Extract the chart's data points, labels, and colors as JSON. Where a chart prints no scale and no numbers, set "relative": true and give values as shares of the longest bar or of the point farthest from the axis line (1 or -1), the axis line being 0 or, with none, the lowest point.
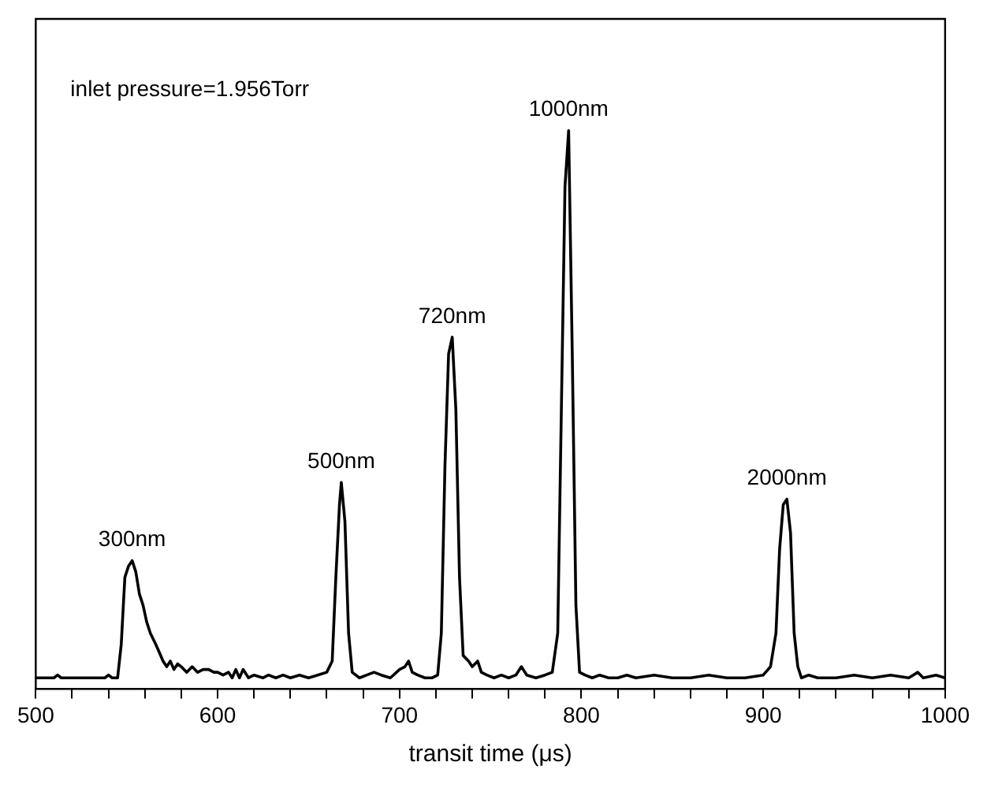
{
  "chart_data": {
    "type": "line",
    "relative": true,
    "xlabel": "transit time (μs)",
    "xlim": [
      500,
      1000
    ],
    "xticks": [
      500,
      {
        "value": 520,
        "label": null
      },
      {
        "value": 540,
        "label": null
      },
      {
        "value": 560,
        "label": null
      },
      {
        "value": 580,
        "label": null
      },
      600,
      {
        "value": 620,
        "label": null
      },
      {
        "value": 640,
        "label": null
      },
      {
        "value": 660,
        "label": null
      },
      {
        "value": 680,
        "label": null
      },
      700,
      {
        "value": 720,
        "label": null
      },
      {
        "value": 740,
        "label": null
      },
      {
        "value": 760,
        "label": null
      },
      {
        "value": 780,
        "label": null
      },
      800,
      {
        "value": 820,
        "label": null
      },
      {
        "value": 840,
        "label": null
      },
      {
        "value": 860,
        "label": null
      },
      {
        "value": 880,
        "label": null
      },
      900,
      {
        "value": 920,
        "label": null
      },
      {
        "value": 940,
        "label": null
      },
      {
        "value": 960,
        "label": null
      },
      {
        "value": 980,
        "label": null
      },
      1000
    ],
    "tick_labels": "x",
    "grid": false,
    "legend": false,
    "marker": "none",
    "line_style": "solid",
    "annotations": [
      "inlet pressure=1.956Torr",
      {
        "text": "300nm",
        "x": 553,
        "y": 0.23
      },
      {
        "text": "500nm",
        "x": 668,
        "y": 0.37
      },
      {
        "text": "720nm",
        "x": 729,
        "y": 0.63
      },
      {
        "text": "1000nm",
        "x": 793,
        "y": 1
      },
      {
        "text": "2000nm",
        "x": 913,
        "y": 0.34
      }
    ],
    "series": [
      {
        "color": "#000000",
        "x": [
          500,
          510,
          512,
          514,
          530,
          538,
          540,
          542,
          545,
          547,
          549,
          551,
          553,
          555,
          557,
          559,
          561,
          563,
          566,
          568,
          570,
          572,
          574,
          576,
          578,
          580,
          583,
          586,
          589,
          592,
          595,
          598,
          600,
          603,
          606,
          608,
          610,
          612,
          614,
          617,
          620,
          625,
          628,
          632,
          636,
          640,
          645,
          650,
          655,
          660,
          663,
          665,
          667,
          668,
          670,
          672,
          674,
          678,
          682,
          686,
          690,
          695,
          700,
          703,
          705,
          707,
          710,
          714,
          718,
          721,
          723,
          725,
          727,
          729,
          731,
          733,
          735,
          738,
          740,
          743,
          745,
          748,
          752,
          756,
          760,
          764,
          767,
          770,
          775,
          780,
          784,
          787,
          789,
          791,
          793,
          795,
          797,
          799,
          802,
          806,
          810,
          815,
          820,
          825,
          830,
          840,
          850,
          860,
          870,
          880,
          890,
          900,
          904,
          907,
          909,
          911,
          913,
          915,
          917,
          919,
          921,
          925,
          930,
          940,
          950,
          960,
          970,
          980,
          985,
          988,
          995,
          1000
        ],
        "values": [
          0.02,
          0.02,
          0.025,
          0.02,
          0.02,
          0.02,
          0.025,
          0.02,
          0.02,
          0.08,
          0.2,
          0.22,
          0.23,
          0.21,
          0.17,
          0.15,
          0.12,
          0.1,
          0.08,
          0.065,
          0.05,
          0.04,
          0.05,
          0.035,
          0.045,
          0.04,
          0.03,
          0.04,
          0.03,
          0.035,
          0.035,
          0.03,
          0.03,
          0.025,
          0.03,
          0.02,
          0.035,
          0.02,
          0.035,
          0.02,
          0.025,
          0.02,
          0.025,
          0.02,
          0.025,
          0.02,
          0.025,
          0.02,
          0.025,
          0.03,
          0.05,
          0.2,
          0.33,
          0.37,
          0.3,
          0.1,
          0.03,
          0.02,
          0.025,
          0.03,
          0.025,
          0.02,
          0.035,
          0.04,
          0.05,
          0.03,
          0.025,
          0.02,
          0.02,
          0.025,
          0.1,
          0.4,
          0.6,
          0.63,
          0.5,
          0.2,
          0.06,
          0.05,
          0.04,
          0.05,
          0.03,
          0.025,
          0.02,
          0.025,
          0.02,
          0.025,
          0.04,
          0.025,
          0.02,
          0.025,
          0.03,
          0.1,
          0.5,
          0.9,
          1,
          0.6,
          0.15,
          0.03,
          0.025,
          0.02,
          0.025,
          0.02,
          0.02,
          0.025,
          0.02,
          0.025,
          0.02,
          0.02,
          0.025,
          0.02,
          0.02,
          0.025,
          0.04,
          0.1,
          0.25,
          0.33,
          0.34,
          0.28,
          0.1,
          0.04,
          0.02,
          0.025,
          0.02,
          0.02,
          0.025,
          0.02,
          0.025,
          0.02,
          0.03,
          0.02,
          0.025,
          0.02
        ]
      }
    ]
  }
}
